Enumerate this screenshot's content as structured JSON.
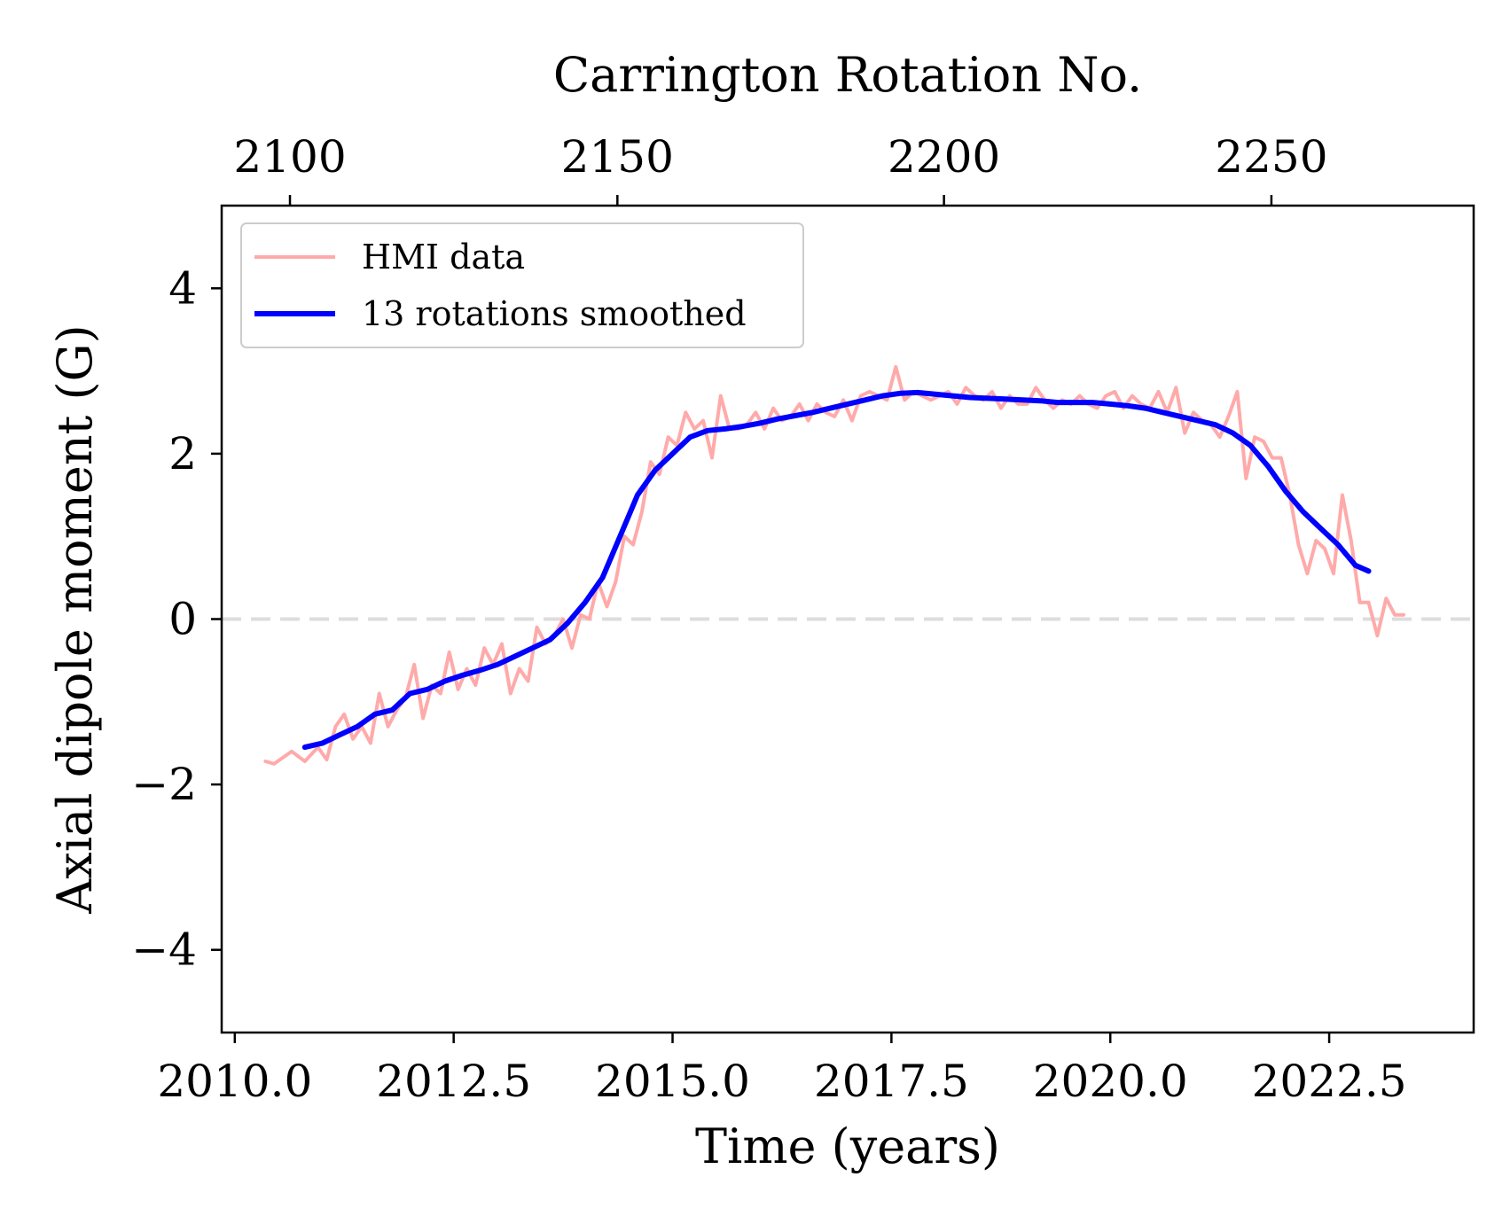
{
  "chart_data": {
    "type": "line",
    "xlabel": "Time (years)",
    "ylabel": "Axial dipole moment (G)",
    "top_xlabel": "Carrington Rotation No.",
    "xlim": [
      2009.85,
      2024.15
    ],
    "ylim": [
      -5,
      5
    ],
    "x_ticks": [
      2010.0,
      2012.5,
      2015.0,
      2017.5,
      2020.0,
      2022.5
    ],
    "x_tick_labels": [
      "2010.0",
      "2012.5",
      "2015.0",
      "2017.5",
      "2020.0",
      "2022.5"
    ],
    "y_ticks": [
      -4,
      -2,
      0,
      2,
      4
    ],
    "y_tick_labels": [
      "−4",
      "−2",
      "0",
      "2",
      "4"
    ],
    "top_ticks": [
      2100,
      2150,
      2200,
      2250
    ],
    "top_tick_labels": [
      "2100",
      "2150",
      "2200",
      "2250"
    ],
    "top_tick_years": [
      2010.63,
      2014.37,
      2018.1,
      2021.84
    ],
    "reference_line": {
      "y": 0,
      "style": "dashed",
      "color": "#dddddd"
    },
    "legend": {
      "placement": "top-left"
    },
    "grid": false,
    "series": [
      {
        "name": "HMI data",
        "color": "#ffaaaa",
        "x": [
          2010.35,
          2010.45,
          2010.65,
          2010.8,
          2010.95,
          2011.05,
          2011.15,
          2011.25,
          2011.35,
          2011.45,
          2011.55,
          2011.65,
          2011.75,
          2011.85,
          2011.95,
          2012.05,
          2012.15,
          2012.25,
          2012.35,
          2012.45,
          2012.55,
          2012.65,
          2012.75,
          2012.85,
          2012.95,
          2013.05,
          2013.15,
          2013.25,
          2013.35,
          2013.45,
          2013.55,
          2013.65,
          2013.75,
          2013.85,
          2013.95,
          2014.05,
          2014.15,
          2014.25,
          2014.35,
          2014.45,
          2014.55,
          2014.65,
          2014.75,
          2014.85,
          2014.95,
          2015.05,
          2015.15,
          2015.25,
          2015.35,
          2015.45,
          2015.55,
          2015.65,
          2015.75,
          2015.85,
          2015.95,
          2016.05,
          2016.15,
          2016.25,
          2016.35,
          2016.45,
          2016.55,
          2016.65,
          2016.75,
          2016.85,
          2016.95,
          2017.05,
          2017.15,
          2017.25,
          2017.35,
          2017.45,
          2017.55,
          2017.65,
          2017.75,
          2017.85,
          2017.95,
          2018.05,
          2018.15,
          2018.25,
          2018.35,
          2018.45,
          2018.55,
          2018.65,
          2018.75,
          2018.85,
          2018.95,
          2019.05,
          2019.15,
          2019.25,
          2019.35,
          2019.45,
          2019.55,
          2019.65,
          2019.75,
          2019.85,
          2019.95,
          2020.05,
          2020.15,
          2020.25,
          2020.35,
          2020.45,
          2020.55,
          2020.65,
          2020.75,
          2020.85,
          2020.95,
          2021.05,
          2021.15,
          2021.25,
          2021.35,
          2021.45,
          2021.55,
          2021.65,
          2021.75,
          2021.85,
          2021.95,
          2022.05,
          2022.15,
          2022.25,
          2022.35,
          2022.45,
          2022.55,
          2022.65,
          2022.75,
          2022.85,
          2022.95,
          2023.05,
          2023.15,
          2023.25,
          2023.35
        ],
        "y": [
          -1.72,
          -1.75,
          -1.6,
          -1.72,
          -1.55,
          -1.7,
          -1.3,
          -1.15,
          -1.45,
          -1.3,
          -1.5,
          -0.9,
          -1.3,
          -1.1,
          -0.95,
          -0.55,
          -1.2,
          -0.8,
          -0.9,
          -0.4,
          -0.85,
          -0.6,
          -0.8,
          -0.35,
          -0.55,
          -0.3,
          -0.9,
          -0.6,
          -0.75,
          -0.1,
          -0.3,
          -0.2,
          0.0,
          -0.35,
          0.05,
          0.0,
          0.45,
          0.15,
          0.45,
          1.0,
          0.9,
          1.3,
          1.9,
          1.75,
          2.2,
          2.1,
          2.5,
          2.3,
          2.4,
          1.95,
          2.7,
          2.3,
          2.3,
          2.35,
          2.5,
          2.3,
          2.55,
          2.4,
          2.45,
          2.6,
          2.4,
          2.6,
          2.5,
          2.45,
          2.65,
          2.4,
          2.7,
          2.75,
          2.7,
          2.65,
          3.05,
          2.65,
          2.75,
          2.7,
          2.65,
          2.7,
          2.75,
          2.6,
          2.8,
          2.7,
          2.65,
          2.75,
          2.55,
          2.7,
          2.6,
          2.6,
          2.8,
          2.65,
          2.55,
          2.65,
          2.6,
          2.7,
          2.6,
          2.55,
          2.7,
          2.75,
          2.55,
          2.7,
          2.6,
          2.55,
          2.75,
          2.5,
          2.8,
          2.25,
          2.5,
          2.4,
          2.35,
          2.2,
          2.45,
          2.75,
          1.7,
          2.2,
          2.15,
          1.95,
          1.95,
          1.5,
          0.9,
          0.55,
          0.95,
          0.85,
          0.55,
          1.5,
          0.95,
          0.2,
          0.2,
          -0.2,
          0.25,
          0.05,
          0.05
        ],
        "width": 4
      },
      {
        "name": "13 rotations smoothed",
        "color": "#0000ff",
        "x": [
          2010.8,
          2011.0,
          2011.2,
          2011.4,
          2011.6,
          2011.8,
          2012.0,
          2012.2,
          2012.4,
          2012.6,
          2012.8,
          2013.0,
          2013.2,
          2013.4,
          2013.6,
          2013.8,
          2014.0,
          2014.2,
          2014.4,
          2014.6,
          2014.8,
          2015.0,
          2015.2,
          2015.4,
          2015.6,
          2015.8,
          2016.0,
          2016.2,
          2016.4,
          2016.6,
          2016.8,
          2017.0,
          2017.2,
          2017.4,
          2017.6,
          2017.8,
          2018.0,
          2018.2,
          2018.4,
          2018.6,
          2018.8,
          2019.0,
          2019.2,
          2019.4,
          2019.6,
          2019.8,
          2020.0,
          2020.2,
          2020.4,
          2020.6,
          2020.8,
          2021.0,
          2021.2,
          2021.4,
          2021.6,
          2021.8,
          2022.0,
          2022.2,
          2022.4,
          2022.6,
          2022.8,
          2022.95
        ],
        "y": [
          -1.55,
          -1.5,
          -1.4,
          -1.3,
          -1.15,
          -1.1,
          -0.9,
          -0.85,
          -0.75,
          -0.68,
          -0.62,
          -0.55,
          -0.45,
          -0.35,
          -0.25,
          -0.05,
          0.2,
          0.5,
          1.0,
          1.5,
          1.8,
          2.0,
          2.2,
          2.28,
          2.3,
          2.33,
          2.37,
          2.42,
          2.46,
          2.5,
          2.55,
          2.6,
          2.65,
          2.7,
          2.73,
          2.74,
          2.72,
          2.7,
          2.68,
          2.67,
          2.66,
          2.65,
          2.64,
          2.62,
          2.62,
          2.62,
          2.6,
          2.58,
          2.55,
          2.5,
          2.45,
          2.4,
          2.35,
          2.25,
          2.1,
          1.85,
          1.55,
          1.3,
          1.1,
          0.9,
          0.65,
          0.58
        ],
        "width": 6
      }
    ]
  }
}
